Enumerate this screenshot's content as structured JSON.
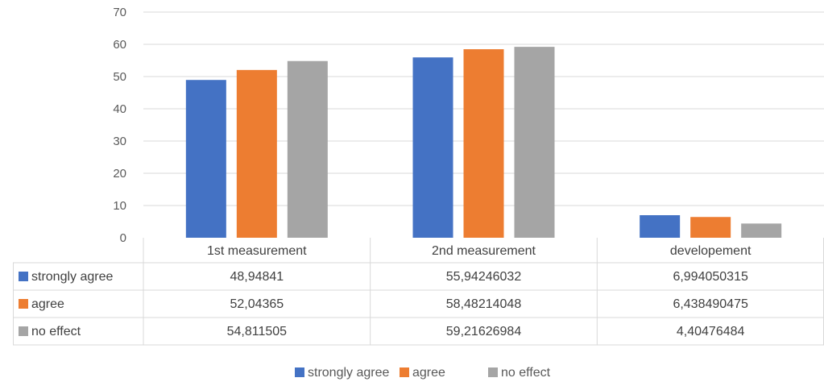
{
  "chart_data": {
    "type": "bar",
    "categories": [
      "1st measurement",
      "2nd measurement",
      "developement"
    ],
    "series": [
      {
        "name": "strongly agree",
        "values": [
          48.94841,
          55.94246032,
          6.994050315
        ],
        "labels": [
          "48,94841",
          "55,94246032",
          "6,994050315"
        ],
        "color": "#4472C4"
      },
      {
        "name": "agree",
        "values": [
          52.04365,
          58.48214048,
          6.438490475
        ],
        "labels": [
          "52,04365",
          "58,48214048",
          "6,438490475"
        ],
        "color": "#ED7D31"
      },
      {
        "name": "no effect",
        "values": [
          54.811505,
          59.21626984,
          4.40476484
        ],
        "labels": [
          "54,811505",
          "59,21626984",
          "4,40476484"
        ],
        "color": "#A5A5A5"
      }
    ],
    "y_ticks": [
      "0",
      "10",
      "20",
      "30",
      "40",
      "50",
      "60",
      "70"
    ],
    "ylim": [
      0,
      70
    ],
    "grid": true,
    "data_table": true,
    "legend_position": "bottom"
  }
}
